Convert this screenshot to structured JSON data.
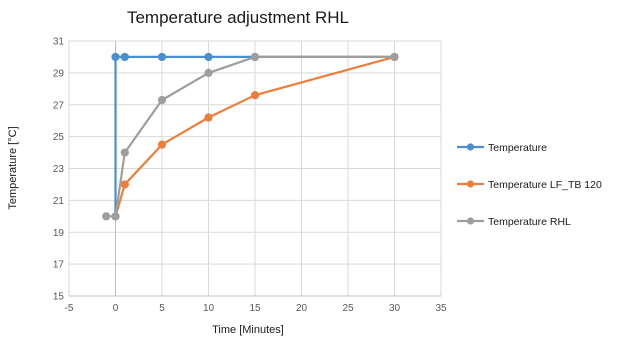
{
  "chart_data": {
    "type": "scatter",
    "title": "Temperature adjustment RHL",
    "xlabel": "Time [Minutes]",
    "ylabel": "Temperature [°C]",
    "xlim": [
      -5,
      35
    ],
    "ylim": [
      15,
      31
    ],
    "x_ticks": [
      -5,
      0,
      5,
      10,
      15,
      20,
      25,
      30,
      35
    ],
    "y_ticks": [
      15,
      17,
      19,
      21,
      23,
      25,
      27,
      29,
      31
    ],
    "grid": true,
    "legend_position": "right",
    "series": [
      {
        "name": "Temperature",
        "color": "#4a8fcf",
        "points": [
          [
            0,
            20
          ],
          [
            0,
            30
          ],
          [
            1,
            30
          ],
          [
            5,
            30
          ],
          [
            10,
            30
          ],
          [
            15,
            30
          ],
          [
            30,
            30
          ]
        ],
        "markers": [
          [
            0,
            30
          ],
          [
            1,
            30
          ],
          [
            5,
            30
          ],
          [
            10,
            30
          ],
          [
            15,
            30
          ]
        ]
      },
      {
        "name": "Temperature LF_TB 120",
        "color": "#ef7d3a",
        "points": [
          [
            0,
            20
          ],
          [
            1,
            22
          ],
          [
            5,
            24.5
          ],
          [
            10,
            26.2
          ],
          [
            15,
            27.6
          ],
          [
            30,
            30
          ]
        ],
        "markers": [
          [
            0,
            20
          ],
          [
            1,
            22
          ],
          [
            5,
            24.5
          ],
          [
            10,
            26.2
          ],
          [
            15,
            27.6
          ],
          [
            30,
            30
          ]
        ]
      },
      {
        "name": "Temperature RHL",
        "color": "#9e9e9e",
        "points": [
          [
            -1,
            20
          ],
          [
            0,
            20
          ],
          [
            1,
            24
          ],
          [
            5,
            27.3
          ],
          [
            10,
            29
          ],
          [
            15,
            30
          ],
          [
            30,
            30
          ]
        ],
        "markers": [
          [
            -1,
            20
          ],
          [
            0,
            20
          ],
          [
            1,
            24
          ],
          [
            5,
            27.3
          ],
          [
            10,
            29
          ],
          [
            15,
            30
          ],
          [
            30,
            30
          ]
        ]
      }
    ]
  }
}
